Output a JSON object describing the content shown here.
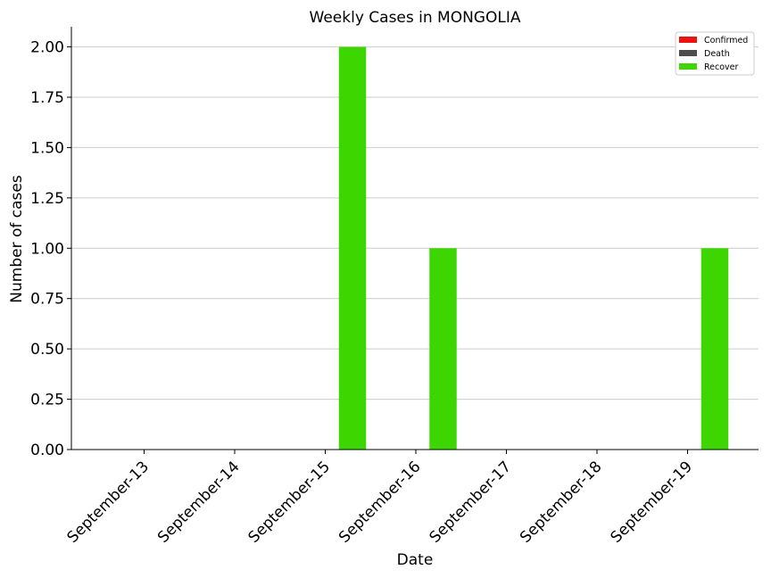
{
  "chart_data": {
    "type": "bar",
    "title": "Weekly Cases in MONGOLIA",
    "xlabel": "Date",
    "ylabel": "Number of cases",
    "categories": [
      "September-13",
      "September-14",
      "September-15",
      "September-16",
      "September-17",
      "September-18",
      "September-19"
    ],
    "series": [
      {
        "name": "Confirmed",
        "color": "#ee1111",
        "values": [
          0,
          0,
          0,
          0,
          0,
          0,
          0
        ]
      },
      {
        "name": "Death",
        "color": "#4d4d4d",
        "values": [
          0,
          0,
          0,
          0,
          0,
          0,
          0
        ]
      },
      {
        "name": "Recover",
        "color": "#3dd600",
        "values": [
          0,
          0,
          2,
          1,
          0,
          0,
          1
        ]
      }
    ],
    "ylim": [
      0,
      2.1
    ],
    "yticks": [
      "0.00",
      "0.25",
      "0.50",
      "0.75",
      "1.00",
      "1.25",
      "1.50",
      "1.75",
      "2.00"
    ],
    "ytick_values": [
      0,
      0.25,
      0.5,
      0.75,
      1.0,
      1.25,
      1.5,
      1.75,
      2.0
    ],
    "grid": "horizontal",
    "legend_position": "top-right"
  }
}
